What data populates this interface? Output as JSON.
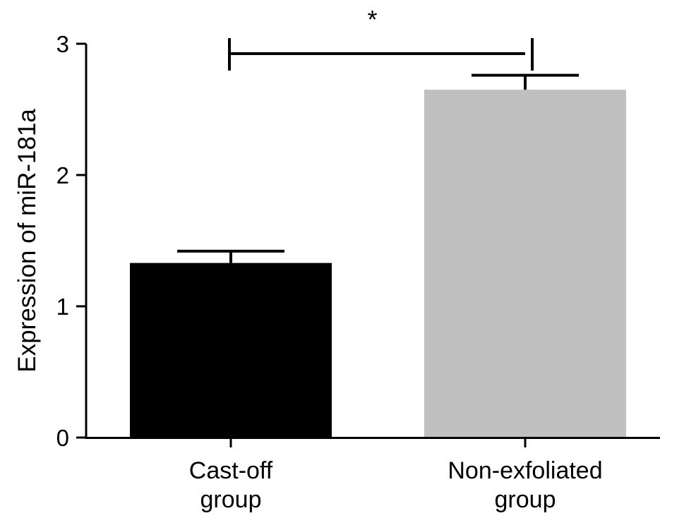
{
  "chart_data": {
    "type": "bar",
    "title": "",
    "xlabel": "",
    "ylabel": "Expression of miR-181a",
    "ylim": [
      0,
      3
    ],
    "yticks": [
      0,
      1,
      2,
      3
    ],
    "grid": false,
    "legend": "none",
    "categories": [
      {
        "lines": [
          "Cast-off",
          "group"
        ],
        "value": 1.33,
        "error": 0.09,
        "color": "#000000"
      },
      {
        "lines": [
          "Non-exfoliated",
          "group"
        ],
        "value": 2.65,
        "error": 0.11,
        "color": "#c0c0c0"
      }
    ],
    "significance": {
      "from": 0,
      "to": 1,
      "label": "*",
      "y": 2.93
    }
  }
}
